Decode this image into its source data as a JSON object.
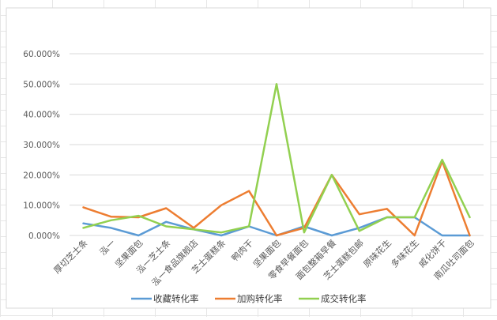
{
  "chart_data": {
    "type": "line",
    "title": "",
    "xlabel": "",
    "ylabel": "",
    "ylim": [
      0,
      60
    ],
    "y_ticks": [
      "0.000%",
      "10.000%",
      "20.000%",
      "30.000%",
      "40.000%",
      "50.000%",
      "60.000%"
    ],
    "grid": true,
    "legend_position": "bottom",
    "categories": [
      "厚切芝士条",
      "泓一",
      "坚果面包",
      "泓一芝士条",
      "泓一食品旗舰店",
      "芝士蛋糕条",
      "鸭肉干",
      "坚果面包",
      "零食早餐面包",
      "面包整箱早餐",
      "芝士蛋糕包邮",
      "原味花生",
      "多味花生",
      "威化饼干",
      "南瓜吐司面包"
    ],
    "series": [
      {
        "name": "收藏转化率",
        "color": "#5b9bd5",
        "values": [
          4.0,
          2.5,
          0.0,
          4.5,
          2.0,
          0.0,
          3.0,
          0.0,
          3.0,
          0.0,
          2.5,
          6.0,
          6.0,
          0.0,
          0.0
        ]
      },
      {
        "name": "加购转化率",
        "color": "#ed7d31",
        "values": [
          9.3,
          6.2,
          6.0,
          9.0,
          2.5,
          10.0,
          14.7,
          0.0,
          2.5,
          20.0,
          7.0,
          8.8,
          0.0,
          24.5,
          0.0
        ]
      },
      {
        "name": "成交转化率",
        "color": "#92d050",
        "values": [
          2.5,
          5.0,
          6.5,
          3.0,
          2.0,
          1.0,
          3.0,
          50.0,
          1.0,
          20.0,
          1.5,
          6.0,
          6.0,
          25.0,
          6.0
        ]
      }
    ]
  }
}
